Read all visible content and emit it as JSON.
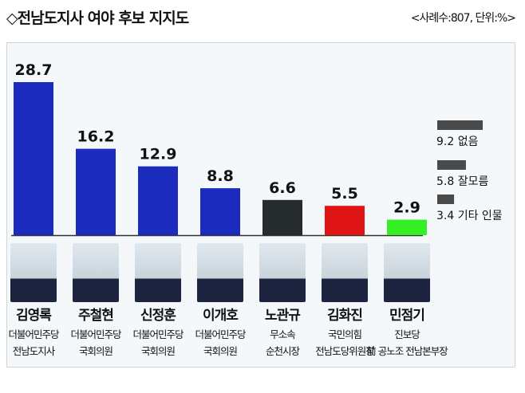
{
  "title": "◇전남도지사 여야 후보 지지도",
  "note": "<사례수:807, 단위:%>",
  "chart_data": {
    "type": "bar",
    "categories": [
      "김영록",
      "주철현",
      "신정훈",
      "이개호",
      "노관규",
      "김화진",
      "민점기"
    ],
    "values": [
      28.7,
      16.2,
      12.9,
      8.8,
      6.6,
      5.5,
      2.9
    ],
    "colors": [
      "#1b2bbd",
      "#1b2bbd",
      "#1b2bbd",
      "#1b2bbd",
      "#262b2d",
      "#e01414",
      "#36ee24"
    ],
    "ylim": [
      0,
      30
    ],
    "candidates": [
      {
        "name": "김영록",
        "party": "더불어민주당",
        "position": "전남도지사"
      },
      {
        "name": "주철현",
        "party": "더불어민주당",
        "position": "국회의원"
      },
      {
        "name": "신정훈",
        "party": "더불어민주당",
        "position": "국회의원"
      },
      {
        "name": "이개호",
        "party": "더불어민주당",
        "position": "국회의원"
      },
      {
        "name": "노관규",
        "party": "무소속",
        "position": "순천시장"
      },
      {
        "name": "김화진",
        "party": "국민의힘",
        "position": "전남도당위원장"
      },
      {
        "name": "민점기",
        "party": "진보당",
        "position": "前 공노조 전남본부장"
      }
    ],
    "others": [
      {
        "label": "없음",
        "value": 9.2
      },
      {
        "label": "잘모름",
        "value": 5.8
      },
      {
        "label": "기타 인물",
        "value": 3.4
      }
    ],
    "other_color": "#4a4a4a"
  }
}
